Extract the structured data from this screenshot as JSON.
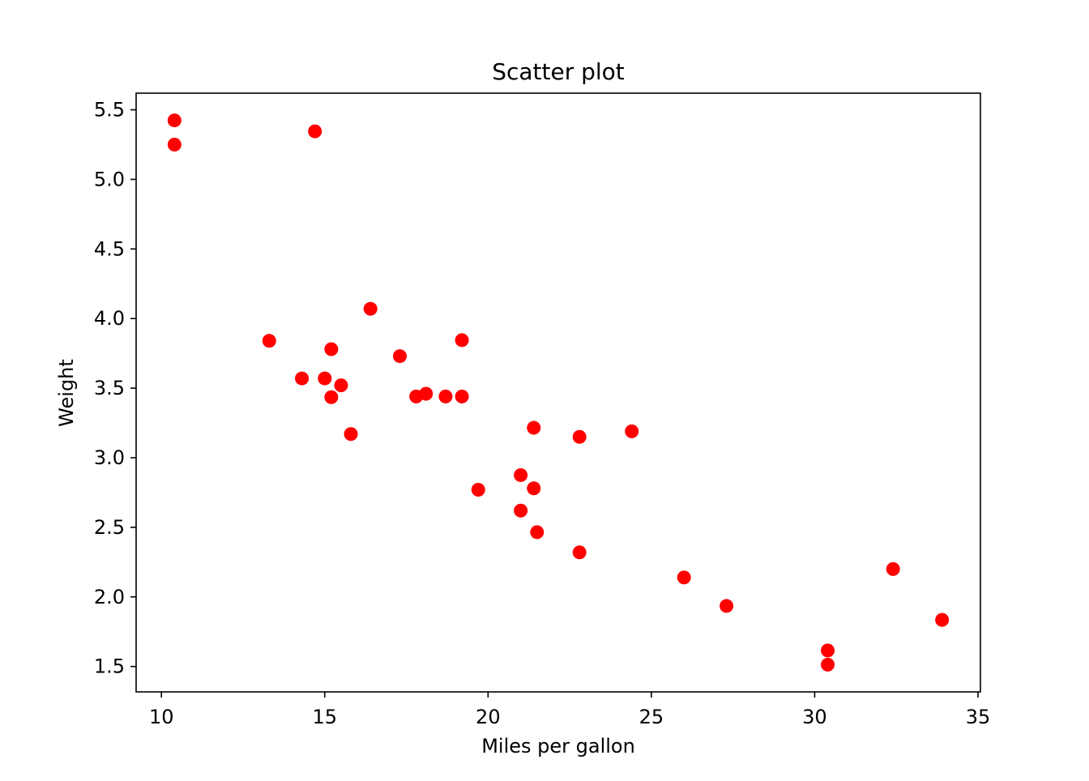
{
  "chart_data": {
    "type": "scatter",
    "title": "Scatter plot",
    "x_label": "Miles per gallon",
    "y_label": "Weight",
    "x": [
      21.0,
      21.0,
      22.8,
      21.4,
      18.7,
      18.1,
      14.3,
      24.4,
      22.8,
      19.2,
      17.8,
      16.4,
      17.3,
      15.2,
      10.4,
      10.4,
      14.7,
      32.4,
      30.4,
      33.9,
      21.5,
      15.5,
      15.2,
      13.3,
      19.2,
      27.3,
      26.0,
      30.4,
      15.8,
      19.7,
      15.0,
      21.4
    ],
    "series": [
      {
        "color": "#ff0000",
        "values": [
          2.62,
          2.875,
          2.32,
          3.215,
          3.44,
          3.46,
          3.57,
          3.19,
          3.15,
          3.44,
          3.44,
          4.07,
          3.73,
          3.78,
          5.25,
          5.424,
          5.345,
          2.2,
          1.615,
          1.835,
          2.465,
          3.52,
          3.435,
          3.84,
          3.845,
          1.935,
          2.14,
          1.513,
          3.17,
          2.77,
          3.57,
          2.78
        ]
      }
    ],
    "xlim": [
      9.225,
      35.075
    ],
    "ylim": [
      1.3175,
      5.6195
    ],
    "xticks": [
      10,
      15,
      20,
      25,
      30,
      35
    ],
    "yticks": [
      {
        "value": 1.5,
        "label": "1.5"
      },
      {
        "value": 2.0,
        "label": "2.0"
      },
      {
        "value": 2.5,
        "label": "2.5"
      },
      {
        "value": 3.0,
        "label": "3.0"
      },
      {
        "value": 3.5,
        "label": "3.5"
      },
      {
        "value": 4.0,
        "label": "4.0"
      },
      {
        "value": 4.5,
        "label": "4.5"
      },
      {
        "value": 5.0,
        "label": "5.0"
      },
      {
        "value": 5.5,
        "label": "5.5"
      }
    ]
  }
}
